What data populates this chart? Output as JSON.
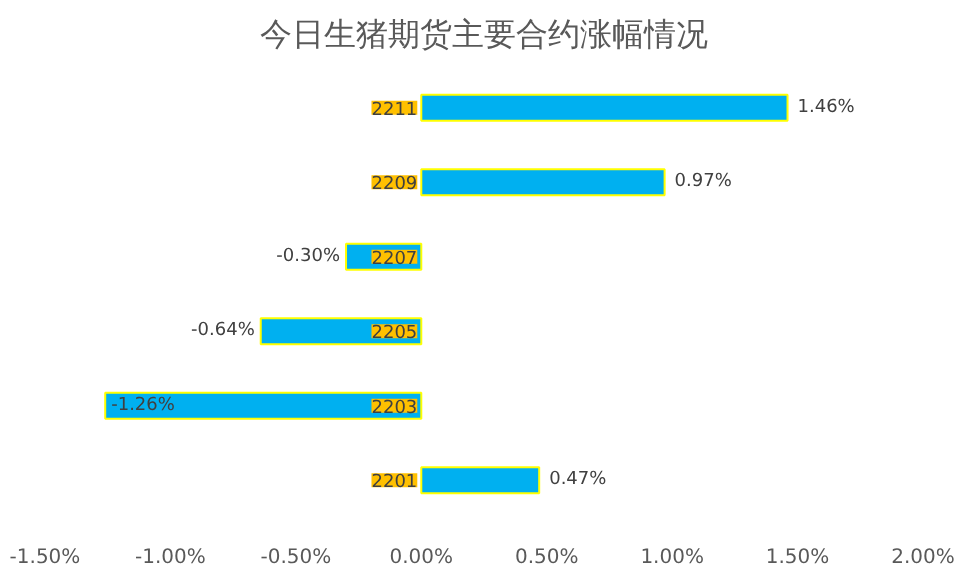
{
  "chart_data": {
    "type": "bar",
    "orientation": "horizontal",
    "title": "今日生猪期货主要合约涨幅情况",
    "categories": [
      "2211",
      "2209",
      "2207",
      "2205",
      "2203",
      "2201"
    ],
    "values": [
      1.46,
      0.97,
      -0.3,
      -0.64,
      -1.26,
      0.47
    ],
    "value_labels": [
      "1.46%",
      "0.97%",
      "-0.30%",
      "-0.64%",
      "-1.26%",
      "0.47%"
    ],
    "color": "#00b0f0",
    "xlim": [
      -1.5,
      2.0
    ],
    "xticks": [
      {
        "value": -1.5,
        "label": "-1.50%"
      },
      {
        "value": -1.0,
        "label": "-1.00%"
      },
      {
        "value": -0.5,
        "label": "-0.50%"
      },
      {
        "value": 0,
        "label": "0.00%"
      },
      {
        "value": 0.5,
        "label": "0.50%"
      },
      {
        "value": 1.0,
        "label": "1.00%"
      },
      {
        "value": 1.5,
        "label": "1.50%"
      },
      {
        "value": 2.0,
        "label": "2.00%"
      }
    ],
    "grid": false
  }
}
